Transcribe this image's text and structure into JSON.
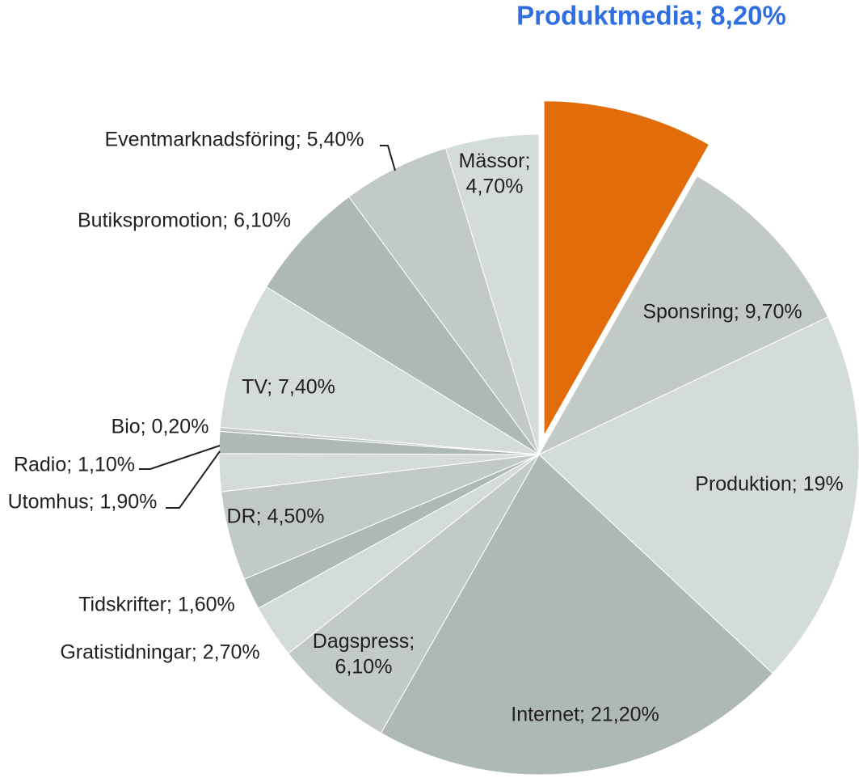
{
  "chart_data": {
    "type": "pie",
    "title": "",
    "slices": [
      {
        "label": "Produktmedia; 8,20%",
        "value": 8.2,
        "color": "#e36c0a",
        "highlight": true,
        "exploded": true
      },
      {
        "label": "Sponsring; 9,70%",
        "value": 9.7,
        "color": "#c1cac6"
      },
      {
        "label": "Produktion; 19%",
        "value": 19.0,
        "color": "#d4dcd8"
      },
      {
        "label": "Internet; 21,20%",
        "value": 21.2,
        "color": "#aeb9b6"
      },
      {
        "label": "Dagspress; 6,10%",
        "lines": [
          "Dagspress;",
          "6,10%"
        ],
        "value": 6.1,
        "color": "#c1cac6"
      },
      {
        "label": "Gratistidningar; 2,70%",
        "value": 2.7,
        "color": "#d4dcd8"
      },
      {
        "label": "Tidskrifter; 1,60%",
        "value": 1.6,
        "color": "#aeb9b6"
      },
      {
        "label": "DR; 4,50%",
        "value": 4.5,
        "color": "#c1cac6"
      },
      {
        "label": "Utomhus; 1,90%",
        "value": 1.9,
        "color": "#d4dcd8"
      },
      {
        "label": "Radio; 1,10%",
        "value": 1.1,
        "color": "#aeb9b6"
      },
      {
        "label": "Bio; 0,20%",
        "value": 0.2,
        "color": "#c1cac6"
      },
      {
        "label": "TV; 7,40%",
        "value": 7.4,
        "color": "#d4dcd8"
      },
      {
        "label": "Butikspromotion; 6,10%",
        "value": 6.1,
        "color": "#aeb9b6"
      },
      {
        "label": "Eventmarknadsföring; 5,40%",
        "value": 5.4,
        "color": "#c1cac6"
      },
      {
        "label": "Mässor; 4,70%",
        "lines": [
          "Mässor;",
          "4,70%"
        ],
        "value": 4.7,
        "color": "#d4dcd8"
      }
    ]
  }
}
